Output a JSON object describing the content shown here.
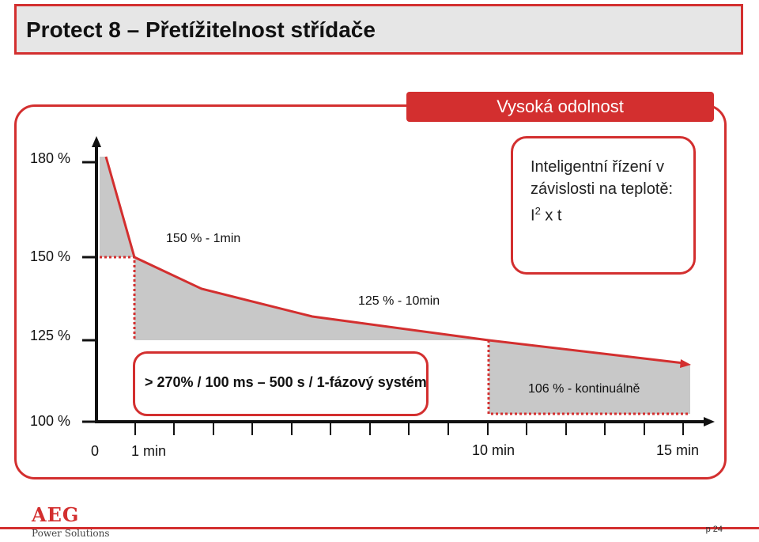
{
  "title": "Protect 8 – Přetížitelnost střídače",
  "banner": "Vysoká odolnost",
  "y_labels": [
    "180 %",
    "150 %",
    "125 %",
    "100 %"
  ],
  "x_labels": [
    "0",
    "1 min",
    "10 min",
    "15 min"
  ],
  "annotations": {
    "a150": "150 % - 1min",
    "a125": "125 % - 10min",
    "a106": "106 % - kontinuálně"
  },
  "info_box": {
    "line1": "Inteligentní řízení v",
    "line2": "závislosti na teplotě:",
    "formula_base": "I",
    "formula_sup": "2",
    "formula_rest": " x t"
  },
  "spec_box": "> 270%  / 100 ms – 500 s / 1-fázový systém",
  "logo": {
    "main": "AEG",
    "sub": "Power Solutions"
  },
  "page": "p 24",
  "colors": {
    "accent": "#d32f2f",
    "fill": "#c8c8c8",
    "axis": "#111111"
  }
}
